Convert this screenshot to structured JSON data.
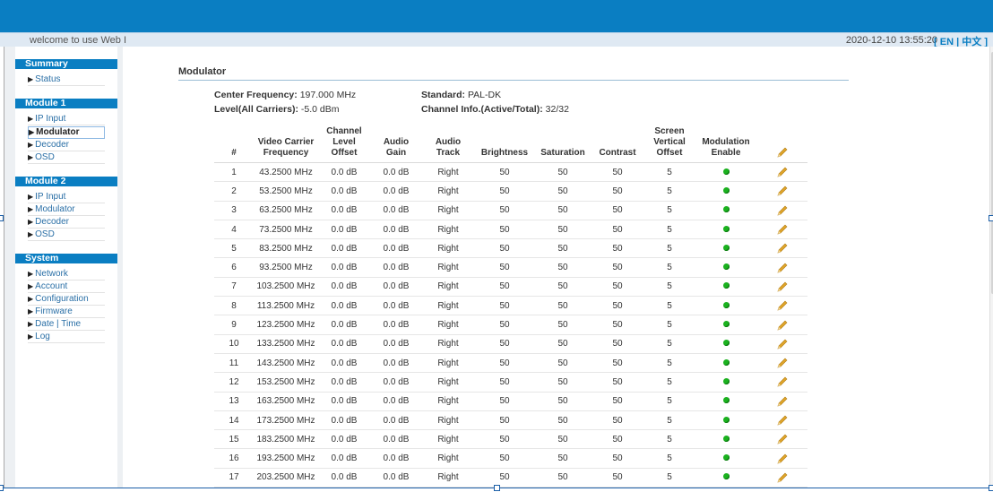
{
  "header": {
    "welcome": "welcome to use Web I",
    "datetime": "2020-12-10 13:55:20",
    "lang_open": "[",
    "lang_en": "EN",
    "lang_sep": "|",
    "lang_zh": "中文",
    "lang_close": "]"
  },
  "sidebar": {
    "sections": [
      {
        "title": "Summary",
        "items": [
          "Status"
        ]
      },
      {
        "title": "Module 1",
        "items": [
          "IP Input",
          "Modulator",
          "Decoder",
          "OSD"
        ]
      },
      {
        "title": "Module 2",
        "items": [
          "IP Input",
          "Modulator",
          "Decoder",
          "OSD"
        ]
      },
      {
        "title": "System",
        "items": [
          "Network",
          "Account",
          "Configuration",
          "Firmware",
          "Date | Time",
          "Log"
        ]
      }
    ],
    "active": "Module 1 / Modulator"
  },
  "main": {
    "title": "Modulator",
    "center_frequency_label": "Center Frequency:",
    "center_frequency_value": "197.000 MHz",
    "standard_label": "Standard:",
    "standard_value": "PAL-DK",
    "level_label": "Level(All Carriers):",
    "level_value": "-5.0 dBm",
    "channel_info_label": "Channel Info.(Active/Total):",
    "channel_info_value": "32/32"
  },
  "table": {
    "headers": {
      "num": "#",
      "video_carrier_1": "Video Carrier",
      "video_carrier_2": "Frequency",
      "level_offset_1": "Channel",
      "level_offset_2": "Level",
      "level_offset_3": "Offset",
      "audio_gain": "Audio Gain",
      "audio_track": "Audio Track",
      "brightness": "Brightness",
      "saturation": "Saturation",
      "contrast": "Contrast",
      "vert_offset_1": "Screen",
      "vert_offset_2": "Vertical",
      "vert_offset_3": "Offset",
      "mod_enable_1": "Modulation",
      "mod_enable_2": "Enable"
    },
    "rows": [
      {
        "num": "1",
        "freq": "43.2500 MHz",
        "offset": "0.0 dB",
        "gain": "0.0 dB",
        "track": "Right",
        "brightness": "50",
        "saturation": "50",
        "contrast": "50",
        "vertical": "5",
        "enabled": true
      },
      {
        "num": "2",
        "freq": "53.2500 MHz",
        "offset": "0.0 dB",
        "gain": "0.0 dB",
        "track": "Right",
        "brightness": "50",
        "saturation": "50",
        "contrast": "50",
        "vertical": "5",
        "enabled": true
      },
      {
        "num": "3",
        "freq": "63.2500 MHz",
        "offset": "0.0 dB",
        "gain": "0.0 dB",
        "track": "Right",
        "brightness": "50",
        "saturation": "50",
        "contrast": "50",
        "vertical": "5",
        "enabled": true
      },
      {
        "num": "4",
        "freq": "73.2500 MHz",
        "offset": "0.0 dB",
        "gain": "0.0 dB",
        "track": "Right",
        "brightness": "50",
        "saturation": "50",
        "contrast": "50",
        "vertical": "5",
        "enabled": true
      },
      {
        "num": "5",
        "freq": "83.2500 MHz",
        "offset": "0.0 dB",
        "gain": "0.0 dB",
        "track": "Right",
        "brightness": "50",
        "saturation": "50",
        "contrast": "50",
        "vertical": "5",
        "enabled": true
      },
      {
        "num": "6",
        "freq": "93.2500 MHz",
        "offset": "0.0 dB",
        "gain": "0.0 dB",
        "track": "Right",
        "brightness": "50",
        "saturation": "50",
        "contrast": "50",
        "vertical": "5",
        "enabled": true
      },
      {
        "num": "7",
        "freq": "103.2500 MHz",
        "offset": "0.0 dB",
        "gain": "0.0 dB",
        "track": "Right",
        "brightness": "50",
        "saturation": "50",
        "contrast": "50",
        "vertical": "5",
        "enabled": true
      },
      {
        "num": "8",
        "freq": "113.2500 MHz",
        "offset": "0.0 dB",
        "gain": "0.0 dB",
        "track": "Right",
        "brightness": "50",
        "saturation": "50",
        "contrast": "50",
        "vertical": "5",
        "enabled": true
      },
      {
        "num": "9",
        "freq": "123.2500 MHz",
        "offset": "0.0 dB",
        "gain": "0.0 dB",
        "track": "Right",
        "brightness": "50",
        "saturation": "50",
        "contrast": "50",
        "vertical": "5",
        "enabled": true
      },
      {
        "num": "10",
        "freq": "133.2500 MHz",
        "offset": "0.0 dB",
        "gain": "0.0 dB",
        "track": "Right",
        "brightness": "50",
        "saturation": "50",
        "contrast": "50",
        "vertical": "5",
        "enabled": true
      },
      {
        "num": "11",
        "freq": "143.2500 MHz",
        "offset": "0.0 dB",
        "gain": "0.0 dB",
        "track": "Right",
        "brightness": "50",
        "saturation": "50",
        "contrast": "50",
        "vertical": "5",
        "enabled": true
      },
      {
        "num": "12",
        "freq": "153.2500 MHz",
        "offset": "0.0 dB",
        "gain": "0.0 dB",
        "track": "Right",
        "brightness": "50",
        "saturation": "50",
        "contrast": "50",
        "vertical": "5",
        "enabled": true
      },
      {
        "num": "13",
        "freq": "163.2500 MHz",
        "offset": "0.0 dB",
        "gain": "0.0 dB",
        "track": "Right",
        "brightness": "50",
        "saturation": "50",
        "contrast": "50",
        "vertical": "5",
        "enabled": true
      },
      {
        "num": "14",
        "freq": "173.2500 MHz",
        "offset": "0.0 dB",
        "gain": "0.0 dB",
        "track": "Right",
        "brightness": "50",
        "saturation": "50",
        "contrast": "50",
        "vertical": "5",
        "enabled": true
      },
      {
        "num": "15",
        "freq": "183.2500 MHz",
        "offset": "0.0 dB",
        "gain": "0.0 dB",
        "track": "Right",
        "brightness": "50",
        "saturation": "50",
        "contrast": "50",
        "vertical": "5",
        "enabled": true
      },
      {
        "num": "16",
        "freq": "193.2500 MHz",
        "offset": "0.0 dB",
        "gain": "0.0 dB",
        "track": "Right",
        "brightness": "50",
        "saturation": "50",
        "contrast": "50",
        "vertical": "5",
        "enabled": true
      },
      {
        "num": "17",
        "freq": "203.2500 MHz",
        "offset": "0.0 dB",
        "gain": "0.0 dB",
        "track": "Right",
        "brightness": "50",
        "saturation": "50",
        "contrast": "50",
        "vertical": "5",
        "enabled": true
      }
    ]
  },
  "colors": {
    "brand_blue": "#0a7ec2",
    "enabled_green": "#1bb21f",
    "edit_icon": "#e0a52a"
  },
  "icons": {
    "edit": "pencil-icon",
    "enabled": "status-dot-icon",
    "menu_bullet": "triangle-right-icon"
  }
}
